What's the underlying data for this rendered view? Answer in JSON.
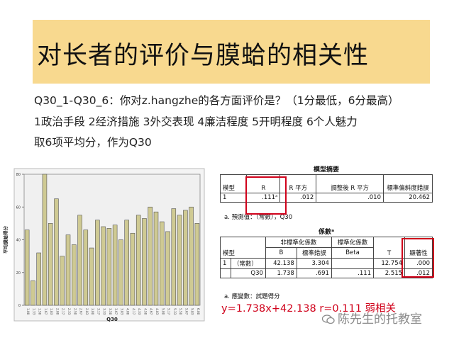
{
  "title": "对长者的评价与膜蛤的相关性",
  "question_lines": [
    "Q30_1-Q30_6：你对z.hangzhe的各方面评价是？（1分最低，6分最高）",
    "1政治手段   2经济措施   3外交表现   4廉洁程度   5开明程度   6个人魅力",
    "取6项平均分，作为Q30"
  ],
  "chart_data": {
    "type": "bar",
    "xlabel": "Q30",
    "ylabel": "平均膜蛤得分",
    "ylim": [
      0,
      80
    ],
    "yticks": [
      "0",
      "20",
      "40",
      "60",
      "80"
    ],
    "tick_labels_shown": [
      "1.00",
      "1.33",
      "1.50",
      "1.67",
      "1.83",
      "2.00",
      "2.17",
      "2.33",
      "2.50",
      "2.67",
      "2.83",
      "3.00",
      "3.17",
      "3.33",
      "3.50",
      "3.67",
      "3.83",
      "4.00",
      "4.17",
      "4.33",
      "4.50",
      "4.67",
      "4.83",
      "5.00",
      "5.17",
      "5.33",
      "5.50",
      "5.67",
      "5.83",
      "6.00"
    ],
    "values": [
      46,
      15,
      32,
      80,
      50,
      65,
      30,
      43,
      37,
      55,
      46,
      35,
      52,
      48,
      47,
      49,
      40,
      52,
      44,
      55,
      53,
      60,
      57,
      51,
      45,
      59,
      55,
      58,
      60,
      50
    ],
    "bar_color": "#cfca93",
    "bar_edge": "#555555",
    "background": "#f0f0f0"
  },
  "model_summary": {
    "caption": "模型摘要",
    "headers": [
      "模型",
      "R",
      "R 平方",
      "調整後 R 平方",
      "標準偏斜度錯誤"
    ],
    "row": [
      "1",
      ".111ᵃ",
      ".012",
      ".010",
      "20.462"
    ],
    "note": "a. 預測值：（常數），Q30"
  },
  "coefficients": {
    "caption": "係數ᵃ",
    "group_headers": [
      "非標準化係數",
      "標準化係數"
    ],
    "headers": [
      "模型",
      "B",
      "標準錯誤",
      "Beta",
      "T",
      "顯著性"
    ],
    "rows": [
      [
        "1",
        "（常數）",
        "42.138",
        "3.304",
        "",
        "12.754",
        ".000"
      ],
      [
        "",
        "Q30",
        "1.738",
        ".691",
        ".111",
        "2.515",
        ".012"
      ]
    ],
    "note": "a. 應變數：試題得分"
  },
  "formula": "y=1.738x+42.138  r=0.111   弱相关",
  "watermark": "陈先生的托教室",
  "colors": {
    "title_band": "#f8d98f",
    "highlight": "#d0021b"
  }
}
